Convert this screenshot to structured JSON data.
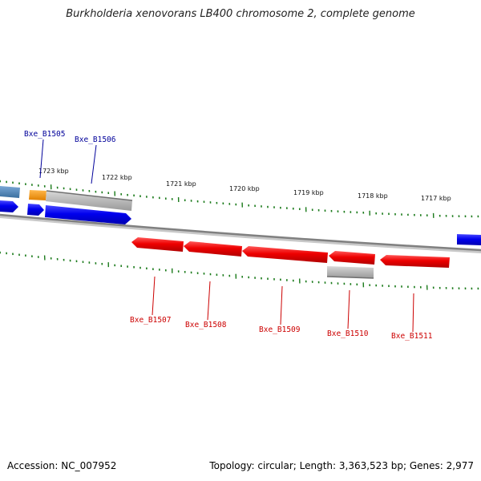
{
  "title": "Burkholderia xenovorans LB400 chromosome 2, complete genome",
  "footer": {
    "accession": "Accession: NC_007952",
    "summary": "Topology: circular; Length: 3,363,523 bp; Genes: 2,977"
  },
  "scale_labels": [
    "1723 kbp",
    "1722 kbp",
    "1721 kbp",
    "1720 kbp",
    "1719 kbp",
    "1718 kbp",
    "1717 kbp"
  ],
  "gene_labels": {
    "forward": [
      "Bxe_B1505",
      "Bxe_B1506"
    ],
    "reverse": [
      "Bxe_B1507",
      "Bxe_B1508",
      "Bxe_B1509",
      "Bxe_B1510",
      "Bxe_B1511"
    ]
  },
  "colors": {
    "forward_gene": "#0000ee",
    "reverse_gene": "#ee0000",
    "forward_label": "#00009a",
    "reverse_label": "#cc0000",
    "tick": "#1a7a1a",
    "backbone": "#888888",
    "other_feature": "#b0b0b0",
    "steel_feature": "#4682b4",
    "orange_feature": "#ff9900"
  }
}
